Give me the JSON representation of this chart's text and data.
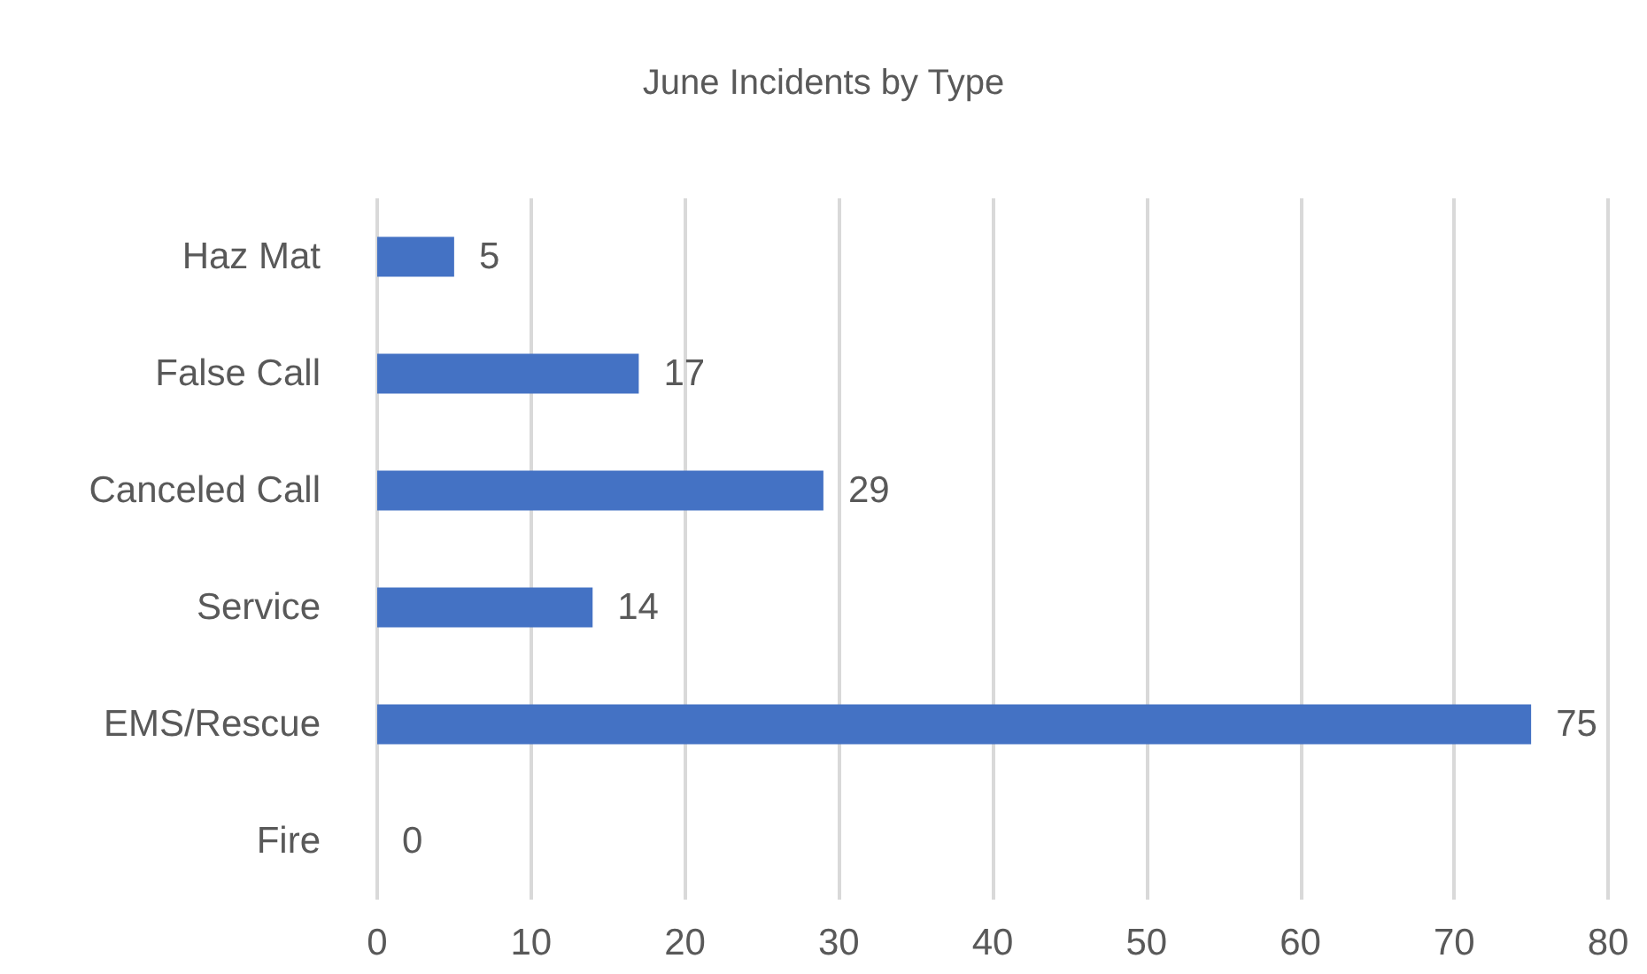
{
  "chart_data": {
    "type": "bar",
    "orientation": "horizontal",
    "title": "June Incidents by Type",
    "categories": [
      "Haz Mat",
      "False Call",
      "Canceled Call",
      "Service",
      "EMS/Rescue",
      "Fire"
    ],
    "values": [
      5,
      17,
      29,
      14,
      75,
      0
    ],
    "color": "#4472c4",
    "xlim": [
      0,
      80
    ],
    "xticks": [
      0,
      10,
      20,
      30,
      40,
      50,
      60,
      70,
      80
    ],
    "grid": "x",
    "data_labels": true
  }
}
